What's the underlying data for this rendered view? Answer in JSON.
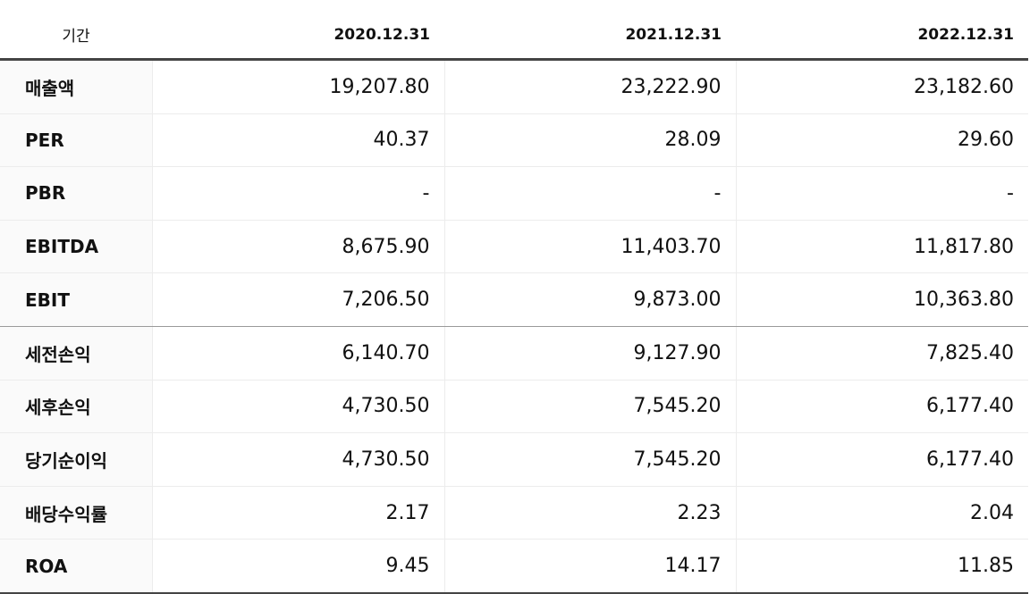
{
  "table": {
    "header": {
      "label": "기간",
      "years": [
        "2020.12.31",
        "2021.12.31",
        "2022.12.31"
      ]
    },
    "rows": [
      {
        "label": "매출액",
        "values": [
          "19,207.80",
          "23,222.90",
          "23,182.60"
        ]
      },
      {
        "label": "PER",
        "values": [
          "40.37",
          "28.09",
          "29.60"
        ]
      },
      {
        "label": "PBR",
        "values": [
          "-",
          "-",
          "-"
        ]
      },
      {
        "label": "EBITDA",
        "values": [
          "8,675.90",
          "11,403.70",
          "11,817.80"
        ]
      },
      {
        "label": "EBIT",
        "values": [
          "7,206.50",
          "9,873.00",
          "10,363.80"
        ]
      },
      {
        "label": "세전손익",
        "values": [
          "6,140.70",
          "9,127.90",
          "7,825.40"
        ]
      },
      {
        "label": "세후손익",
        "values": [
          "4,730.50",
          "7,545.20",
          "6,177.40"
        ]
      },
      {
        "label": "당기순이익",
        "values": [
          "4,730.50",
          "7,545.20",
          "6,177.40"
        ]
      },
      {
        "label": "배당수익률",
        "values": [
          "2.17",
          "2.23",
          "2.04"
        ]
      },
      {
        "label": "ROA",
        "values": [
          "9.45",
          "14.17",
          "11.85"
        ]
      }
    ]
  }
}
